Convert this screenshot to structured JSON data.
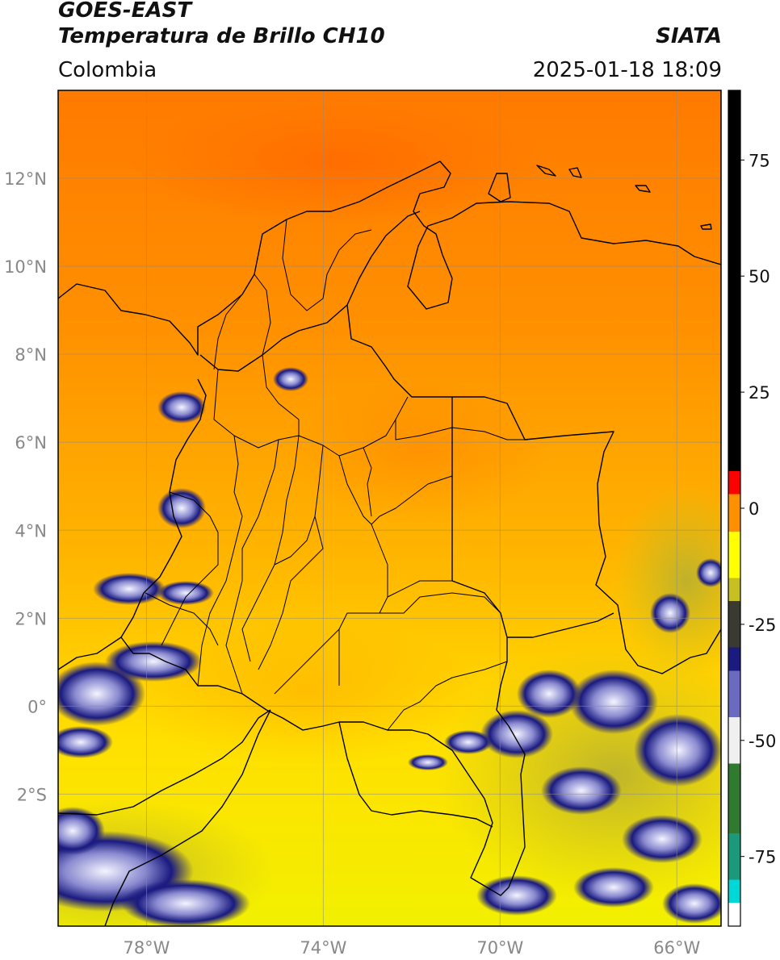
{
  "header": {
    "satellite": "GOES-EAST",
    "product": "Temperatura de Brillo CH10",
    "organization": "SIATA",
    "region": "Colombia",
    "datetime": "2025-01-18 18:09"
  },
  "map": {
    "lon_range": [
      -80,
      -65
    ],
    "lat_range": [
      -5,
      14
    ],
    "lon_ticks": [
      {
        "value": -78,
        "label": "78°W"
      },
      {
        "value": -74,
        "label": "74°W"
      },
      {
        "value": -70,
        "label": "70°W"
      },
      {
        "value": -66,
        "label": "66°W"
      }
    ],
    "lat_ticks": [
      {
        "value": 12,
        "label": "12°N"
      },
      {
        "value": 10,
        "label": "10°N"
      },
      {
        "value": 8,
        "label": "8°N"
      },
      {
        "value": 6,
        "label": "6°N"
      },
      {
        "value": 4,
        "label": "4°N"
      },
      {
        "value": 2,
        "label": "2°N"
      },
      {
        "value": 0,
        "label": "0°"
      },
      {
        "value": -2,
        "label": "2°S"
      }
    ],
    "grid": true
  },
  "colorbar": {
    "range": [
      -90,
      90
    ],
    "ticks": [
      {
        "value": 75,
        "label": "75"
      },
      {
        "value": 50,
        "label": "50"
      },
      {
        "value": 25,
        "label": "25"
      },
      {
        "value": 0,
        "label": "0"
      },
      {
        "value": -25,
        "label": "-25"
      },
      {
        "value": -50,
        "label": "-50"
      },
      {
        "value": -75,
        "label": "-75"
      }
    ],
    "colors": [
      "#ffffff",
      "#00d8d8",
      "#1a9a7a",
      "#2f7a2f",
      "#f0f0f0",
      "#1a1a80",
      "#c8c020",
      "#ffff00",
      "#ff9000",
      "#ff0000",
      "#000000"
    ]
  }
}
